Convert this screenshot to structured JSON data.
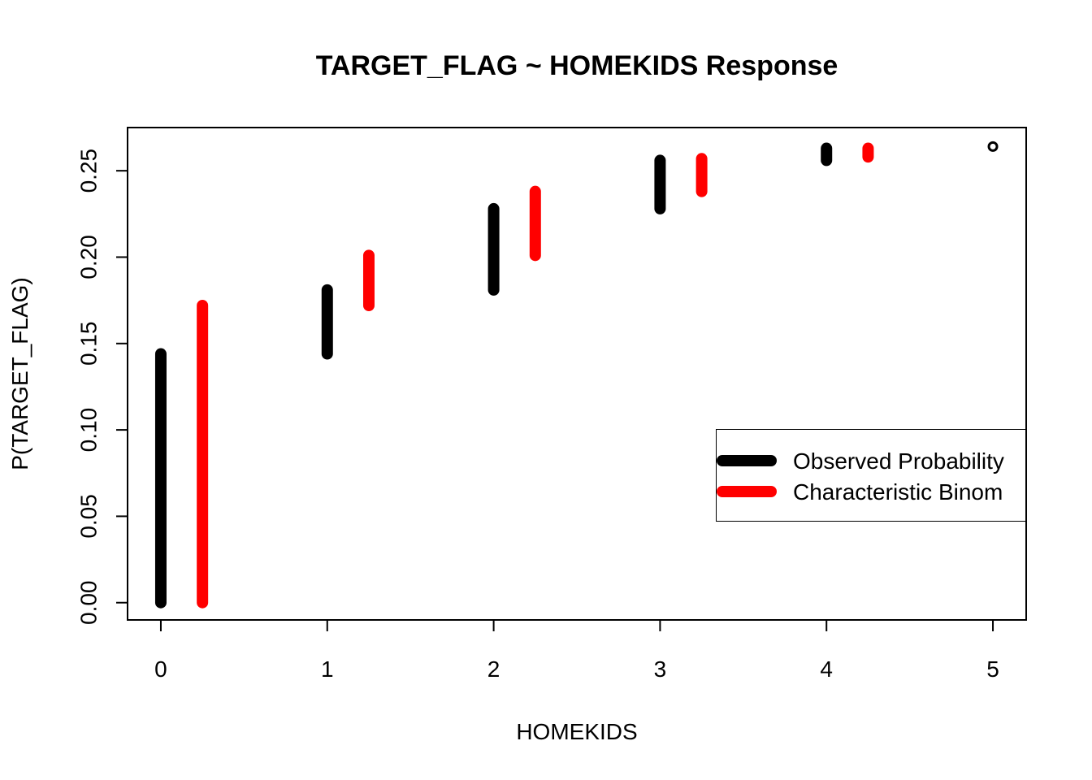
{
  "chart_data": {
    "type": "line",
    "title": "TARGET_FLAG ~ HOMEKIDS Response",
    "xlabel": "HOMEKIDS",
    "ylabel": "P(TARGET_FLAG)",
    "xlim": [
      -0.2,
      5.2
    ],
    "ylim": [
      -0.01,
      0.275
    ],
    "x_ticks": [
      "0",
      "1",
      "2",
      "3",
      "4",
      "5"
    ],
    "y_ticks": [
      "0.00",
      "0.05",
      "0.10",
      "0.15",
      "0.20",
      "0.25"
    ],
    "grid": false,
    "legend_position": "right",
    "series": [
      {
        "name": "Observed Probability",
        "color": "#000000",
        "x_offset": 0,
        "segments": [
          {
            "x": 0,
            "low": 0.0,
            "high": 0.144
          },
          {
            "x": 1,
            "low": 0.144,
            "high": 0.181
          },
          {
            "x": 2,
            "low": 0.181,
            "high": 0.228
          },
          {
            "x": 3,
            "low": 0.228,
            "high": 0.256
          },
          {
            "x": 4,
            "low": 0.256,
            "high": 0.263
          }
        ]
      },
      {
        "name": "Characteristic Binom",
        "color": "#ff0000",
        "x_offset": 0.25,
        "segments": [
          {
            "x": 0,
            "low": 0.0,
            "high": 0.172
          },
          {
            "x": 1,
            "low": 0.172,
            "high": 0.201
          },
          {
            "x": 2,
            "low": 0.201,
            "high": 0.238
          },
          {
            "x": 3,
            "low": 0.238,
            "high": 0.257
          },
          {
            "x": 4,
            "low": 0.258,
            "high": 0.263
          }
        ]
      }
    ],
    "points": [
      {
        "x": 5,
        "y": 0.264,
        "color": "#000000"
      }
    ]
  }
}
